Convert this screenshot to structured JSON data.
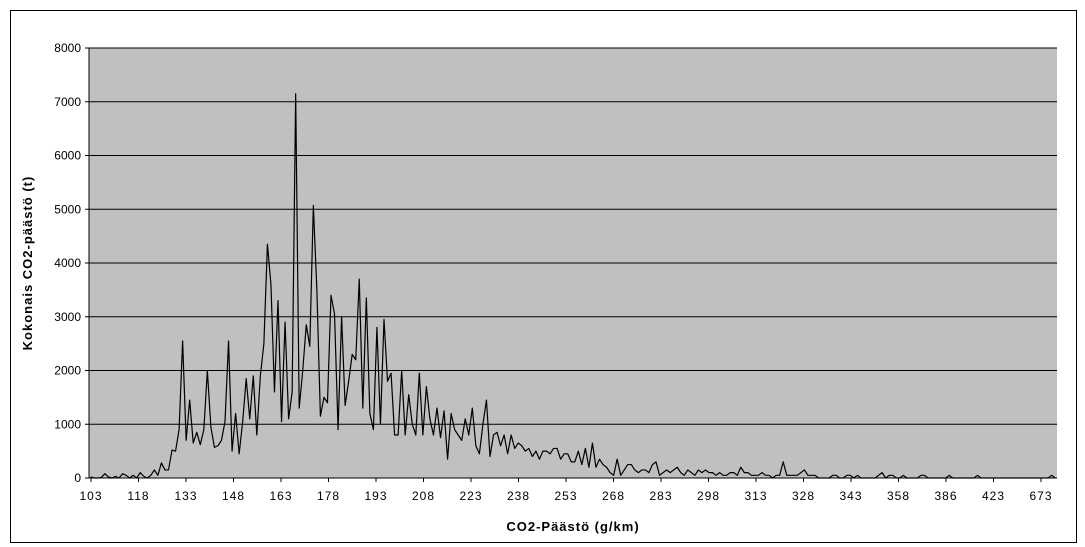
{
  "chart_data": {
    "type": "line",
    "title": "",
    "xlabel": "CO2-Päästö (g/km)",
    "ylabel": "Kokonais CO2-päästö (t)",
    "ylim": [
      0,
      8000
    ],
    "yticks": [
      "0",
      "1000",
      "2000",
      "3000",
      "4000",
      "5000",
      "6000",
      "7000",
      "8000"
    ],
    "xtick_labels": [
      "103",
      "118",
      "133",
      "148",
      "163",
      "178",
      "193",
      "208",
      "223",
      "238",
      "253",
      "268",
      "283",
      "298",
      "313",
      "328",
      "343",
      "358",
      "386",
      "423",
      "673"
    ],
    "grid": true,
    "legend": "none",
    "colors": {
      "plot_bg": "#c0c0c0",
      "line": "#000000",
      "grid": "#000000"
    },
    "series": [
      {
        "values": [
          20,
          0,
          0,
          10,
          80,
          20,
          0,
          30,
          0,
          80,
          50,
          0,
          50,
          0,
          100,
          30,
          0,
          50,
          150,
          50,
          280,
          150,
          150,
          520,
          500,
          900,
          2550,
          700,
          1450,
          650,
          850,
          620,
          900,
          2000,
          950,
          570,
          600,
          700,
          1050,
          2550,
          500,
          1200,
          450,
          1050,
          1850,
          1100,
          1900,
          800,
          1900,
          2500,
          4350,
          3600,
          1600,
          3300,
          1050,
          2900,
          1100,
          1600,
          7150,
          1300,
          2000,
          2850,
          2450,
          5070,
          3500,
          1150,
          1500,
          1400,
          3400,
          3050,
          900,
          3000,
          1350,
          1800,
          2300,
          2200,
          3700,
          1300,
          3350,
          1200,
          900,
          2800,
          1000,
          2950,
          1800,
          1950,
          800,
          800,
          2000,
          800,
          1550,
          1000,
          800,
          1950,
          800,
          1700,
          1100,
          800,
          1300,
          750,
          1250,
          350,
          1200,
          900,
          800,
          700,
          1100,
          800,
          1300,
          600,
          450,
          1000,
          1450,
          400,
          800,
          850,
          600,
          800,
          450,
          800,
          550,
          650,
          600,
          500,
          550,
          400,
          500,
          350,
          500,
          500,
          450,
          550,
          550,
          350,
          450,
          450,
          300,
          300,
          500,
          250,
          550,
          200,
          650,
          200,
          350,
          250,
          200,
          100,
          50,
          350,
          50,
          150,
          250,
          250,
          150,
          100,
          150,
          150,
          100,
          250,
          300,
          50,
          100,
          150,
          100,
          150,
          200,
          100,
          50,
          150,
          100,
          50,
          150,
          100,
          150,
          100,
          100,
          50,
          100,
          50,
          50,
          100,
          100,
          50,
          200,
          100,
          100,
          50,
          50,
          50,
          100,
          50,
          50,
          0,
          50,
          50,
          300,
          50,
          50,
          50,
          50,
          100,
          150,
          50,
          50,
          50,
          0,
          0,
          0,
          0,
          50,
          50,
          0,
          0,
          50,
          50,
          0,
          50,
          0,
          0,
          0,
          0,
          0,
          50,
          100,
          0,
          50,
          50,
          0,
          0,
          50,
          0,
          0,
          0,
          0,
          50,
          50,
          0,
          0,
          0,
          0,
          0,
          0,
          50,
          0,
          0,
          0,
          0,
          0,
          0,
          0,
          50,
          0,
          0,
          0,
          0,
          0,
          0,
          0,
          0,
          0,
          0,
          0,
          0,
          0,
          0,
          0,
          0,
          0,
          0,
          0,
          0,
          50,
          0
        ]
      }
    ]
  }
}
